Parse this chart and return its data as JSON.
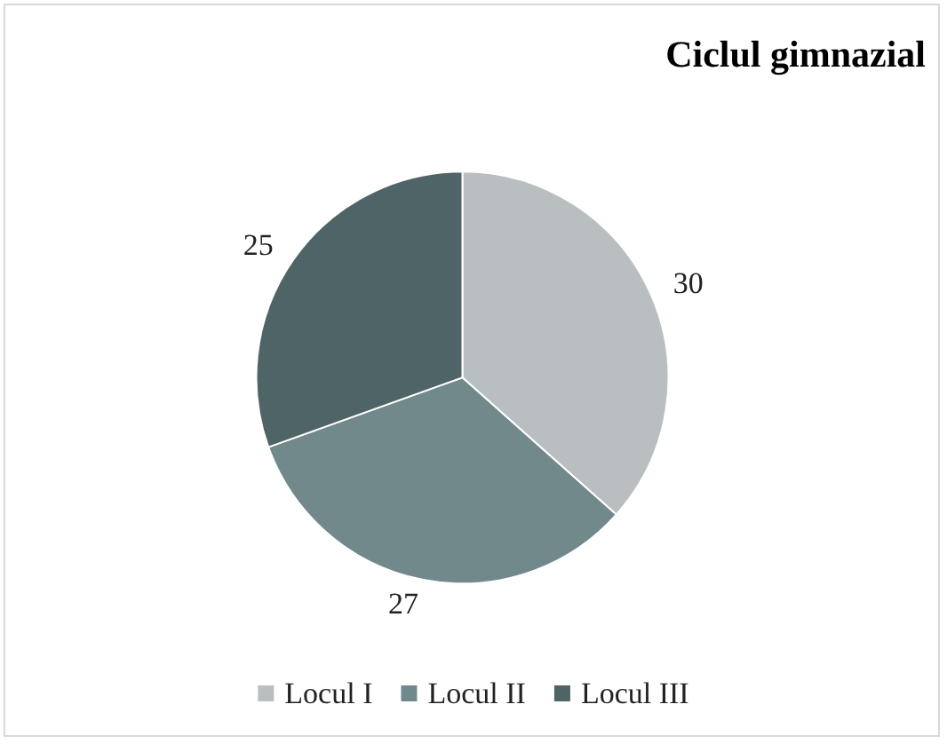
{
  "chart_data": {
    "type": "pie",
    "title": "Ciclul gimnazial",
    "categories": [
      "Locul I",
      "Locul II",
      "Locul III"
    ],
    "values": [
      30,
      27,
      25
    ],
    "colors": [
      "#b9bfc0",
      "#72898c",
      "#4f6466"
    ],
    "data_labels": true,
    "legend": "bottom"
  }
}
